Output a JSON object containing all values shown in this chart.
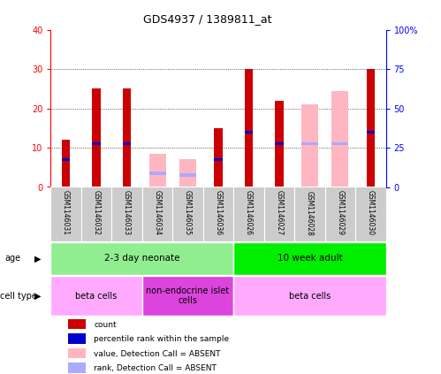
{
  "title": "GDS4937 / 1389811_at",
  "samples": [
    "GSM1146031",
    "GSM1146032",
    "GSM1146033",
    "GSM1146034",
    "GSM1146035",
    "GSM1146036",
    "GSM1146026",
    "GSM1146027",
    "GSM1146028",
    "GSM1146029",
    "GSM1146030"
  ],
  "red_bars": [
    12,
    25,
    25,
    0,
    0,
    15,
    30,
    22,
    0,
    0,
    30
  ],
  "blue_dots": [
    7,
    11,
    11,
    0,
    0,
    7,
    14,
    11,
    0,
    0,
    14
  ],
  "pink_bars": [
    0,
    0,
    0,
    8.5,
    7,
    0,
    0,
    0,
    21,
    24.5,
    0
  ],
  "lightblue_dots": [
    0,
    0,
    0,
    3.5,
    3,
    0,
    0,
    0,
    11,
    11,
    0
  ],
  "ylim_left": [
    0,
    40
  ],
  "ylim_right": [
    0,
    100
  ],
  "yticks_left": [
    0,
    10,
    20,
    30,
    40
  ],
  "ytick_labels_right": [
    "0",
    "25",
    "50",
    "75",
    "100%"
  ],
  "age_groups": [
    {
      "label": "2-3 day neonate",
      "start": 0,
      "end": 6,
      "color": "#90EE90"
    },
    {
      "label": "10 week adult",
      "start": 6,
      "end": 11,
      "color": "#00EE00"
    }
  ],
  "cell_groups": [
    {
      "label": "beta cells",
      "start": 0,
      "end": 3,
      "color": "#FFAAFF"
    },
    {
      "label": "non-endocrine islet\ncells",
      "start": 3,
      "end": 6,
      "color": "#DD44DD"
    },
    {
      "label": "beta cells",
      "start": 6,
      "end": 11,
      "color": "#FFAAFF"
    }
  ],
  "legend_items": [
    {
      "color": "#CC0000",
      "label": "count"
    },
    {
      "color": "#0000CC",
      "label": "percentile rank within the sample"
    },
    {
      "color": "#FFB6C1",
      "label": "value, Detection Call = ABSENT"
    },
    {
      "color": "#AAAAFF",
      "label": "rank, Detection Call = ABSENT"
    }
  ],
  "red_color": "#CC0000",
  "pink_color": "#FFB6C1",
  "blue_color": "#0000CC",
  "lightblue_color": "#AAAAFF"
}
